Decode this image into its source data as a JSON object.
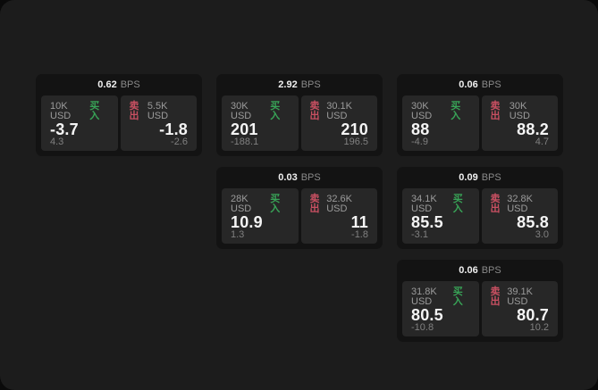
{
  "labels": {
    "bps_unit": "BPS",
    "buy": "买入",
    "sell": "卖出"
  },
  "colors": {
    "surface": "#1c1c1c",
    "card_background": "#131313",
    "panel_background": "#272727",
    "buy_green": "#38a457",
    "sell_red": "#c95062",
    "primary_text": "#f5f5f5",
    "muted_text": "#8a8a8a"
  },
  "cards": [
    {
      "bps": "0.62",
      "buy": {
        "amount": "10K USD",
        "price": "-3.7",
        "change": "4.3"
      },
      "sell": {
        "amount": "5.5K USD",
        "price": "-1.8",
        "change": "-2.6"
      }
    },
    {
      "bps": "2.92",
      "buy": {
        "amount": "30K USD",
        "price": "201",
        "change": "-188.1"
      },
      "sell": {
        "amount": "30.1K USD",
        "price": "210",
        "change": "196.5"
      }
    },
    {
      "bps": "0.06",
      "buy": {
        "amount": "30K USD",
        "price": "88",
        "change": "-4.9"
      },
      "sell": {
        "amount": "30K USD",
        "price": "88.2",
        "change": "4.7"
      }
    },
    {
      "bps": "0.03",
      "buy": {
        "amount": "28K USD",
        "price": "10.9",
        "change": "1.3"
      },
      "sell": {
        "amount": "32.6K USD",
        "price": "11",
        "change": "-1.8"
      }
    },
    {
      "bps": "0.09",
      "buy": {
        "amount": "34.1K USD",
        "price": "85.5",
        "change": "-3.1"
      },
      "sell": {
        "amount": "32.8K USD",
        "price": "85.8",
        "change": "3.0"
      }
    },
    {
      "bps": "0.06",
      "buy": {
        "amount": "31.8K USD",
        "price": "80.5",
        "change": "-10.8"
      },
      "sell": {
        "amount": "39.1K USD",
        "price": "80.7",
        "change": "10.2"
      }
    }
  ]
}
